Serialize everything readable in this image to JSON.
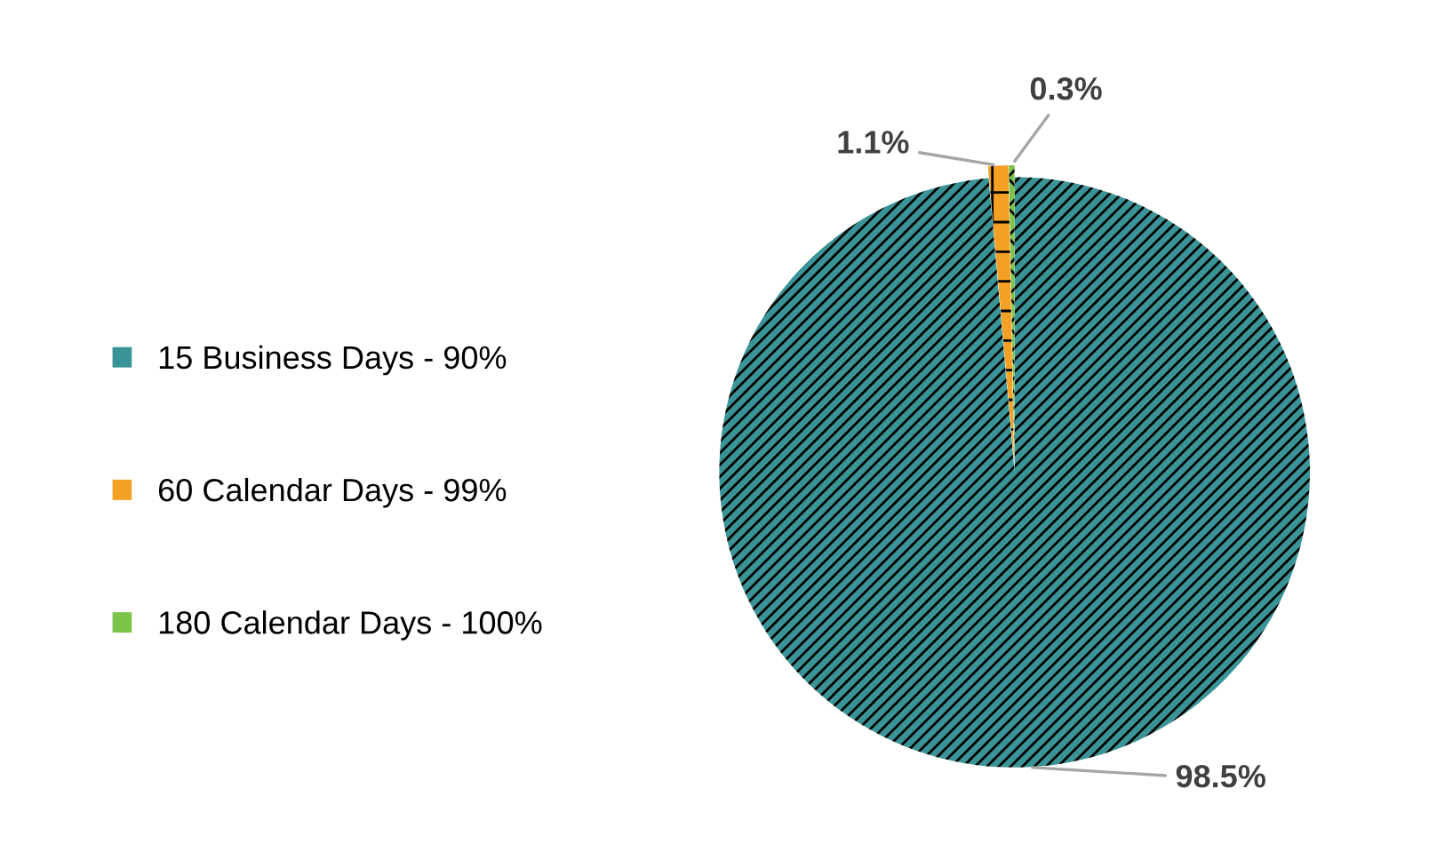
{
  "chart_data": {
    "type": "pie",
    "categories": [
      "15 Business Days - 90%",
      "60 Calendar Days - 99%",
      "180 Calendar Days - 100%"
    ],
    "values": [
      98.5,
      1.1,
      0.3
    ],
    "colors": [
      "#3a9497",
      "#f4a025",
      "#7cc34a"
    ],
    "value_labels": [
      "98.5%",
      "1.1%",
      "0.3%"
    ],
    "legend": "left"
  }
}
